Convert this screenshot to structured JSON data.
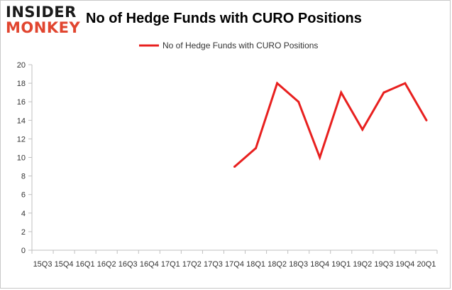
{
  "logo": {
    "line1": "INSIDER",
    "line2": "MONKEY"
  },
  "chart_data": {
    "type": "line",
    "title": "No of Hedge Funds with CURO Positions",
    "xlabel": "",
    "ylabel": "",
    "legend": {
      "position": "top",
      "entries": [
        "No of Hedge Funds with CURO Positions"
      ]
    },
    "grid": false,
    "ylim": [
      0,
      20
    ],
    "yticks": [
      0,
      2,
      4,
      6,
      8,
      10,
      12,
      14,
      16,
      18,
      20
    ],
    "categories": [
      "2015Q3",
      "2015Q4",
      "2016Q1",
      "2016Q2",
      "2016Q3",
      "2016Q4",
      "2017Q1",
      "2017Q2",
      "2017Q3",
      "2017Q4",
      "2018Q1",
      "2018Q2",
      "2018Q3",
      "2018Q4",
      "2019Q1",
      "2019Q2",
      "2019Q3",
      "2019Q4",
      "2020Q1"
    ],
    "xtick_labels": [
      "15Q3",
      "15Q4",
      "16Q1",
      "16Q2",
      "16Q3",
      "16Q4",
      "17Q1",
      "17Q2",
      "17Q3",
      "17Q4",
      "18Q1",
      "18Q2",
      "18Q3",
      "18Q4",
      "19Q1",
      "19Q2",
      "19Q3",
      "19Q4",
      "20Q1"
    ],
    "series": [
      {
        "name": "No of Hedge Funds with CURO Positions",
        "color": "#e8201f",
        "values": [
          null,
          null,
          null,
          null,
          null,
          null,
          null,
          null,
          null,
          9,
          11,
          18,
          16,
          10,
          17,
          13,
          17,
          18,
          14
        ]
      }
    ]
  }
}
